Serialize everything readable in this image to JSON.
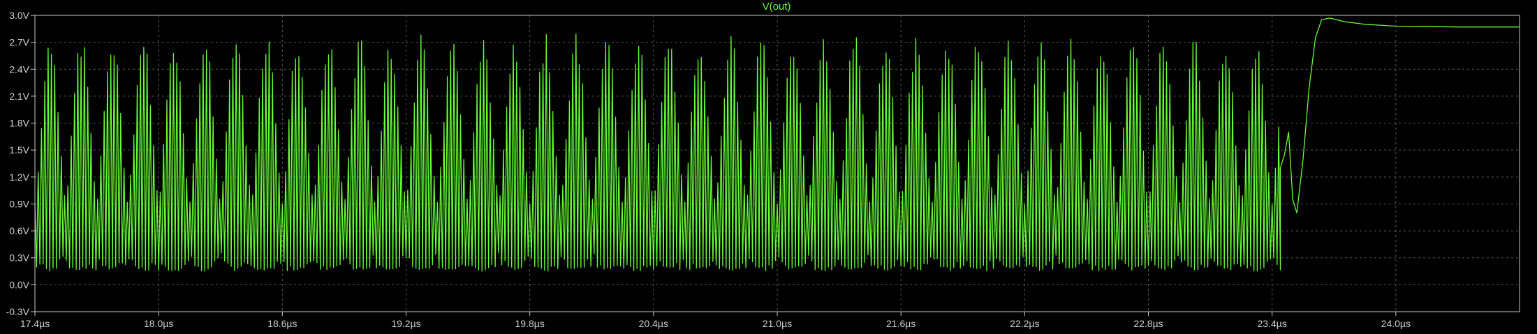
{
  "colors": {
    "background": "#000000",
    "trace": "#66ff33",
    "axis": "#c8c8c8",
    "grid": "#5a5a5a",
    "label": "#d0d0d0"
  },
  "chart_data": {
    "type": "line",
    "title": "V(out)",
    "xlabel": "",
    "ylabel": "",
    "x_unit": "µs",
    "y_unit": "V",
    "xlim": [
      17.4,
      24.6
    ],
    "ylim": [
      -0.3,
      3.0
    ],
    "grid": "dotted, on",
    "x_ticks": [
      17.4,
      18.0,
      18.6,
      19.2,
      19.8,
      20.4,
      21.0,
      21.6,
      22.2,
      22.8,
      23.4,
      24.0
    ],
    "x_tick_labels": [
      "17.4µs",
      "18.0µs",
      "18.6µs",
      "19.2µs",
      "19.8µs",
      "20.4µs",
      "21.0µs",
      "21.6µs",
      "22.2µs",
      "22.8µs",
      "23.4µs",
      "24.0µs"
    ],
    "y_ticks": [
      3.0,
      2.7,
      2.4,
      2.1,
      1.8,
      1.5,
      1.2,
      0.9,
      0.6,
      0.3,
      0.0,
      -0.3
    ],
    "y_tick_labels": [
      "3.0V",
      "2.7V",
      "2.4V",
      "2.1V",
      "1.8V",
      "1.5V",
      "1.2V",
      "0.9V",
      "0.6V",
      "0.3V",
      "0.0V",
      "-0.3V"
    ],
    "series": [
      {
        "name": "V(out)",
        "description_points": {
          "oscillation": {
            "x_start": 17.4,
            "x_end": 23.44,
            "min": 0.15,
            "max": 2.8,
            "burst_period": 0.15
          },
          "transition": [
            [
              23.44,
              1.3
            ],
            [
              23.46,
              1.45
            ],
            [
              23.48,
              1.7
            ],
            [
              23.5,
              0.95
            ],
            [
              23.52,
              0.8
            ],
            [
              23.55,
              1.4
            ],
            [
              23.58,
              2.2
            ],
            [
              23.61,
              2.75
            ],
            [
              23.64,
              2.95
            ],
            [
              23.68,
              2.97
            ],
            [
              23.75,
              2.93
            ],
            [
              23.85,
              2.9
            ],
            [
              24.0,
              2.88
            ],
            [
              24.3,
              2.87
            ],
            [
              24.6,
              2.87
            ]
          ]
        }
      }
    ]
  }
}
